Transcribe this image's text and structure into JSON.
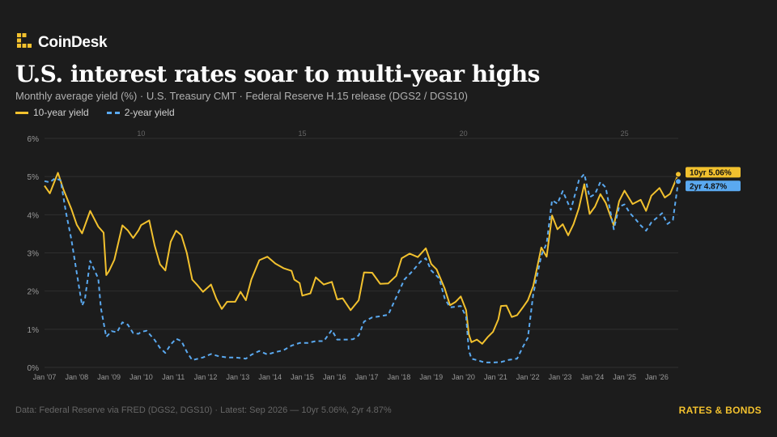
{
  "brand": {
    "name": "CoinDesk",
    "logo_icon": "coindesk-logo-icon"
  },
  "title": "U.S. interest rates soar to multi-year highs",
  "subtitle": "Monthly average yield (%) · U.S. Treasury CMT · Federal Reserve H.15 release (DGS2 / DGS10)",
  "legend": {
    "ten_year": "10-year yield",
    "two_year": "2-year yield"
  },
  "footer": "Data: Federal Reserve via FRED (DGS2, DGS10) · Latest: Sep 2026 — 10yr 5.06%, 2yr 4.87%",
  "category_label": "RATES & BONDS",
  "colors": {
    "ten_year": "#f2c12e",
    "two_year": "#5aa9f0",
    "background": "#1c1c1c"
  },
  "chart_data": {
    "type": "line",
    "x_ticks": [
      "Jan '07",
      "Jan '08",
      "Jan '09",
      "Jan '10",
      "Jan '11",
      "Jan '12",
      "Jan '13",
      "Jan '14",
      "Jan '15",
      "Jan '16",
      "Jan '17",
      "Jan '18",
      "Jan '19",
      "Jan '20",
      "Jan '21",
      "Jan '22",
      "Jan '23",
      "Jan '24",
      "Jan '25",
      "Jan '26"
    ],
    "top_ticks": [
      {
        "label": "10",
        "date": "2010-01"
      },
      {
        "label": "15",
        "date": "2015-01"
      },
      {
        "label": "20",
        "date": "2020-01"
      },
      {
        "label": "25",
        "date": "2025-01"
      }
    ],
    "y_ticks": [
      "0%",
      "1%",
      "2%",
      "3%",
      "4%",
      "5%",
      "6%"
    ],
    "ylim": [
      0,
      6
    ],
    "xlim": [
      "2007-01",
      "2026-09"
    ],
    "grid": true,
    "series": [
      {
        "name": "10-year yield",
        "style": "solid",
        "points": [
          [
            "2007-01",
            4.76
          ],
          [
            "2007-03",
            4.56
          ],
          [
            "2007-06",
            5.1
          ],
          [
            "2007-08",
            4.67
          ],
          [
            "2007-11",
            4.15
          ],
          [
            "2008-01",
            3.74
          ],
          [
            "2008-03",
            3.51
          ],
          [
            "2008-06",
            4.1
          ],
          [
            "2008-09",
            3.69
          ],
          [
            "2008-11",
            3.53
          ],
          [
            "2008-12",
            2.42
          ],
          [
            "2009-01",
            2.52
          ],
          [
            "2009-03",
            2.82
          ],
          [
            "2009-06",
            3.72
          ],
          [
            "2009-08",
            3.59
          ],
          [
            "2009-10",
            3.39
          ],
          [
            "2009-12",
            3.59
          ],
          [
            "2010-01",
            3.73
          ],
          [
            "2010-04",
            3.85
          ],
          [
            "2010-06",
            3.2
          ],
          [
            "2010-08",
            2.7
          ],
          [
            "2010-10",
            2.54
          ],
          [
            "2010-12",
            3.29
          ],
          [
            "2011-02",
            3.58
          ],
          [
            "2011-04",
            3.46
          ],
          [
            "2011-06",
            3.0
          ],
          [
            "2011-08",
            2.3
          ],
          [
            "2011-10",
            2.15
          ],
          [
            "2011-12",
            1.98
          ],
          [
            "2012-03",
            2.17
          ],
          [
            "2012-05",
            1.8
          ],
          [
            "2012-07",
            1.53
          ],
          [
            "2012-09",
            1.72
          ],
          [
            "2012-12",
            1.72
          ],
          [
            "2013-02",
            1.98
          ],
          [
            "2013-04",
            1.76
          ],
          [
            "2013-06",
            2.3
          ],
          [
            "2013-09",
            2.81
          ],
          [
            "2013-12",
            2.9
          ],
          [
            "2014-03",
            2.72
          ],
          [
            "2014-06",
            2.6
          ],
          [
            "2014-09",
            2.53
          ],
          [
            "2014-10",
            2.3
          ],
          [
            "2014-12",
            2.21
          ],
          [
            "2015-01",
            1.88
          ],
          [
            "2015-04",
            1.94
          ],
          [
            "2015-06",
            2.36
          ],
          [
            "2015-09",
            2.17
          ],
          [
            "2015-12",
            2.24
          ],
          [
            "2016-02",
            1.78
          ],
          [
            "2016-04",
            1.81
          ],
          [
            "2016-07",
            1.5
          ],
          [
            "2016-10",
            1.76
          ],
          [
            "2016-12",
            2.49
          ],
          [
            "2017-03",
            2.48
          ],
          [
            "2017-06",
            2.19
          ],
          [
            "2017-09",
            2.2
          ],
          [
            "2017-12",
            2.4
          ],
          [
            "2018-02",
            2.86
          ],
          [
            "2018-05",
            2.98
          ],
          [
            "2018-08",
            2.89
          ],
          [
            "2018-11",
            3.12
          ],
          [
            "2019-01",
            2.71
          ],
          [
            "2019-03",
            2.57
          ],
          [
            "2019-06",
            2.07
          ],
          [
            "2019-08",
            1.63
          ],
          [
            "2019-10",
            1.71
          ],
          [
            "2019-12",
            1.86
          ],
          [
            "2020-02",
            1.5
          ],
          [
            "2020-03",
            0.87
          ],
          [
            "2020-04",
            0.66
          ],
          [
            "2020-06",
            0.73
          ],
          [
            "2020-08",
            0.62
          ],
          [
            "2020-10",
            0.79
          ],
          [
            "2020-12",
            0.93
          ],
          [
            "2021-02",
            1.26
          ],
          [
            "2021-03",
            1.61
          ],
          [
            "2021-05",
            1.62
          ],
          [
            "2021-07",
            1.32
          ],
          [
            "2021-09",
            1.37
          ],
          [
            "2021-11",
            1.56
          ],
          [
            "2022-01",
            1.76
          ],
          [
            "2022-03",
            2.13
          ],
          [
            "2022-06",
            3.14
          ],
          [
            "2022-08",
            2.9
          ],
          [
            "2022-10",
            3.98
          ],
          [
            "2022-12",
            3.62
          ],
          [
            "2023-02",
            3.75
          ],
          [
            "2023-04",
            3.46
          ],
          [
            "2023-06",
            3.75
          ],
          [
            "2023-08",
            4.17
          ],
          [
            "2023-10",
            4.8
          ],
          [
            "2023-12",
            4.02
          ],
          [
            "2024-02",
            4.21
          ],
          [
            "2024-04",
            4.54
          ],
          [
            "2024-06",
            4.31
          ],
          [
            "2024-09",
            3.72
          ],
          [
            "2024-11",
            4.36
          ],
          [
            "2025-01",
            4.63
          ],
          [
            "2025-04",
            4.28
          ],
          [
            "2025-07",
            4.39
          ],
          [
            "2025-09",
            4.1
          ],
          [
            "2025-11",
            4.5
          ],
          [
            "2026-02",
            4.7
          ],
          [
            "2026-04",
            4.45
          ],
          [
            "2026-06",
            4.55
          ],
          [
            "2026-09",
            5.06
          ]
        ]
      },
      {
        "name": "2-year yield",
        "style": "dashed",
        "points": [
          [
            "2007-01",
            4.88
          ],
          [
            "2007-03",
            4.85
          ],
          [
            "2007-05",
            4.96
          ],
          [
            "2007-07",
            4.9
          ],
          [
            "2007-09",
            4.06
          ],
          [
            "2007-11",
            3.35
          ],
          [
            "2008-01",
            2.48
          ],
          [
            "2008-03",
            1.62
          ],
          [
            "2008-04",
            1.77
          ],
          [
            "2008-06",
            2.79
          ],
          [
            "2008-09",
            2.33
          ],
          [
            "2008-10",
            1.55
          ],
          [
            "2008-12",
            0.8
          ],
          [
            "2009-02",
            0.95
          ],
          [
            "2009-04",
            0.92
          ],
          [
            "2009-06",
            1.18
          ],
          [
            "2009-08",
            1.12
          ],
          [
            "2009-10",
            0.9
          ],
          [
            "2009-12",
            0.88
          ],
          [
            "2010-01",
            0.93
          ],
          [
            "2010-03",
            0.96
          ],
          [
            "2010-06",
            0.72
          ],
          [
            "2010-08",
            0.51
          ],
          [
            "2010-10",
            0.38
          ],
          [
            "2010-12",
            0.6
          ],
          [
            "2011-02",
            0.75
          ],
          [
            "2011-04",
            0.69
          ],
          [
            "2011-06",
            0.41
          ],
          [
            "2011-08",
            0.19
          ],
          [
            "2011-12",
            0.26
          ],
          [
            "2012-03",
            0.35
          ],
          [
            "2012-06",
            0.29
          ],
          [
            "2012-09",
            0.26
          ],
          [
            "2012-12",
            0.26
          ],
          [
            "2013-04",
            0.23
          ],
          [
            "2013-06",
            0.33
          ],
          [
            "2013-09",
            0.43
          ],
          [
            "2013-12",
            0.34
          ],
          [
            "2014-03",
            0.4
          ],
          [
            "2014-06",
            0.45
          ],
          [
            "2014-09",
            0.57
          ],
          [
            "2014-12",
            0.64
          ],
          [
            "2015-03",
            0.64
          ],
          [
            "2015-06",
            0.69
          ],
          [
            "2015-09",
            0.69
          ],
          [
            "2015-12",
            0.98
          ],
          [
            "2016-02",
            0.73
          ],
          [
            "2016-06",
            0.73
          ],
          [
            "2016-08",
            0.74
          ],
          [
            "2016-10",
            0.84
          ],
          [
            "2016-12",
            1.2
          ],
          [
            "2017-03",
            1.31
          ],
          [
            "2017-06",
            1.34
          ],
          [
            "2017-09",
            1.38
          ],
          [
            "2017-12",
            1.84
          ],
          [
            "2018-03",
            2.3
          ],
          [
            "2018-06",
            2.52
          ],
          [
            "2018-09",
            2.77
          ],
          [
            "2018-11",
            2.86
          ],
          [
            "2019-01",
            2.54
          ],
          [
            "2019-04",
            2.33
          ],
          [
            "2019-06",
            1.81
          ],
          [
            "2019-08",
            1.57
          ],
          [
            "2019-12",
            1.61
          ],
          [
            "2020-02",
            1.33
          ],
          [
            "2020-03",
            0.45
          ],
          [
            "2020-04",
            0.23
          ],
          [
            "2020-06",
            0.19
          ],
          [
            "2020-09",
            0.13
          ],
          [
            "2020-12",
            0.13
          ],
          [
            "2021-03",
            0.14
          ],
          [
            "2021-06",
            0.2
          ],
          [
            "2021-09",
            0.23
          ],
          [
            "2021-11",
            0.52
          ],
          [
            "2022-01",
            0.78
          ],
          [
            "2022-03",
            1.91
          ],
          [
            "2022-06",
            2.93
          ],
          [
            "2022-08",
            3.25
          ],
          [
            "2022-10",
            4.38
          ],
          [
            "2022-12",
            4.29
          ],
          [
            "2023-02",
            4.62
          ],
          [
            "2023-05",
            4.13
          ],
          [
            "2023-08",
            4.9
          ],
          [
            "2023-10",
            5.07
          ],
          [
            "2023-12",
            4.46
          ],
          [
            "2024-02",
            4.54
          ],
          [
            "2024-04",
            4.86
          ],
          [
            "2024-06",
            4.71
          ],
          [
            "2024-09",
            3.62
          ],
          [
            "2024-11",
            4.21
          ],
          [
            "2025-01",
            4.27
          ],
          [
            "2025-03",
            4.04
          ],
          [
            "2025-05",
            3.89
          ],
          [
            "2025-07",
            3.72
          ],
          [
            "2025-09",
            3.58
          ],
          [
            "2025-11",
            3.8
          ],
          [
            "2026-01",
            3.92
          ],
          [
            "2026-03",
            4.04
          ],
          [
            "2026-05",
            3.76
          ],
          [
            "2026-07",
            3.86
          ],
          [
            "2026-09",
            4.87
          ]
        ]
      }
    ],
    "end_labels": [
      {
        "series": "10-year yield",
        "text": "10yr 5.06%"
      },
      {
        "series": "2-year yield",
        "text": "2yr 4.87%"
      }
    ]
  }
}
